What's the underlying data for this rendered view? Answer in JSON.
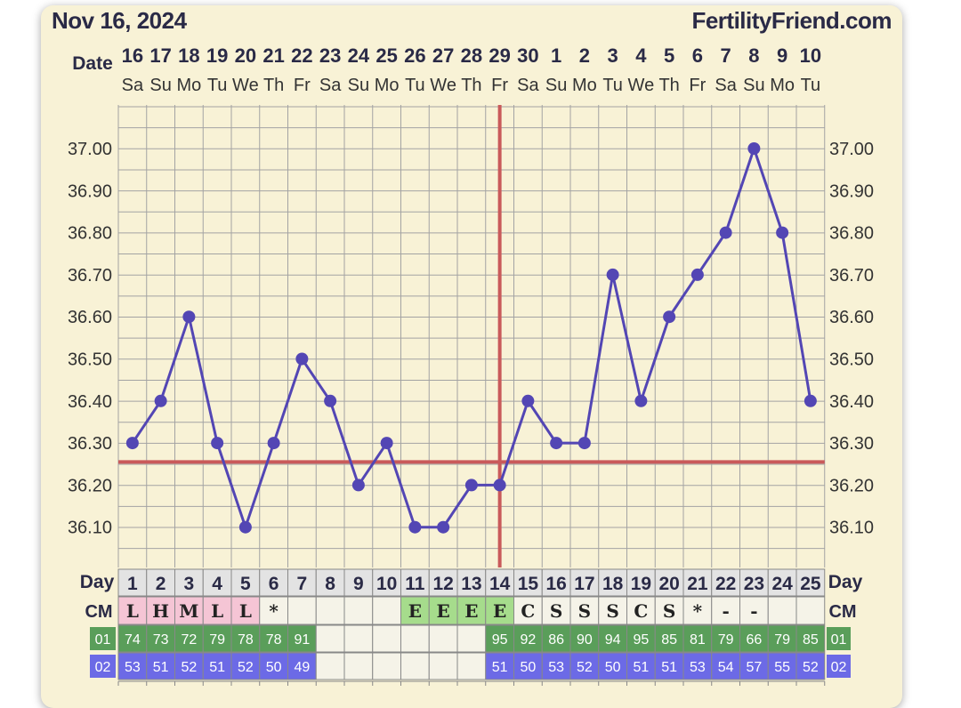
{
  "header": {
    "date": "Nov 16, 2024",
    "site": "FertilityFriend.com"
  },
  "labels": {
    "date_row": "Date",
    "day_row": "Day",
    "cm_row": "CM",
    "row1": "01",
    "row2": "02"
  },
  "chart_data": {
    "type": "line",
    "dates": [
      "16",
      "17",
      "18",
      "19",
      "20",
      "21",
      "22",
      "23",
      "24",
      "25",
      "26",
      "27",
      "28",
      "29",
      "30",
      "1",
      "2",
      "3",
      "4",
      "5",
      "6",
      "7",
      "8",
      "9",
      "10"
    ],
    "weekdays": [
      "Sa",
      "Su",
      "Mo",
      "Tu",
      "We",
      "Th",
      "Fr",
      "Sa",
      "Su",
      "Mo",
      "Tu",
      "We",
      "Th",
      "Fr",
      "Sa",
      "Su",
      "Mo",
      "Tu",
      "We",
      "Th",
      "Fr",
      "Sa",
      "Su",
      "Mo",
      "Tu"
    ],
    "cycle_days": [
      1,
      2,
      3,
      4,
      5,
      6,
      7,
      8,
      9,
      10,
      11,
      12,
      13,
      14,
      15,
      16,
      17,
      18,
      19,
      20,
      21,
      22,
      23,
      24,
      25
    ],
    "temperatures": [
      36.3,
      36.4,
      36.6,
      36.3,
      36.1,
      36.3,
      36.5,
      36.4,
      36.2,
      36.3,
      36.1,
      36.1,
      36.2,
      36.2,
      36.4,
      36.3,
      36.3,
      36.7,
      36.4,
      36.6,
      36.7,
      36.8,
      37.0,
      36.8,
      36.4
    ],
    "y_ticks": [
      "37.00",
      "36.90",
      "36.80",
      "36.70",
      "36.60",
      "36.50",
      "36.40",
      "36.30",
      "36.20",
      "36.10"
    ],
    "ylim": [
      36.0,
      37.1
    ],
    "coverline": 36.255,
    "ovulation_day": 14,
    "cm": [
      "L",
      "H",
      "M",
      "L",
      "L",
      "*",
      "",
      "",
      "",
      "",
      "E",
      "E",
      "E",
      "E",
      "C",
      "S",
      "S",
      "S",
      "C",
      "S",
      "*",
      "-",
      "-",
      "",
      ""
    ],
    "row1": [
      "74",
      "73",
      "72",
      "79",
      "78",
      "78",
      "91",
      "",
      "",
      "",
      "",
      "",
      "",
      "95",
      "92",
      "86",
      "90",
      "94",
      "95",
      "85",
      "81",
      "79",
      "66",
      "79",
      "85"
    ],
    "row2": [
      "53",
      "51",
      "52",
      "51",
      "52",
      "50",
      "49",
      "",
      "",
      "",
      "",
      "",
      "",
      "51",
      "50",
      "53",
      "52",
      "50",
      "51",
      "51",
      "53",
      "54",
      "57",
      "55",
      "52"
    ]
  },
  "colors": {
    "line": "#5346b4",
    "coverline": "#c95a5a",
    "grid": "#a3a3a3",
    "menses_cell": "#f5c5d5",
    "egg_white_cell": "#a6dc8c",
    "row1_cell": "#5a9e5a",
    "row2_cell": "#6c6ae6",
    "day_cell": "#e3e3e3"
  }
}
